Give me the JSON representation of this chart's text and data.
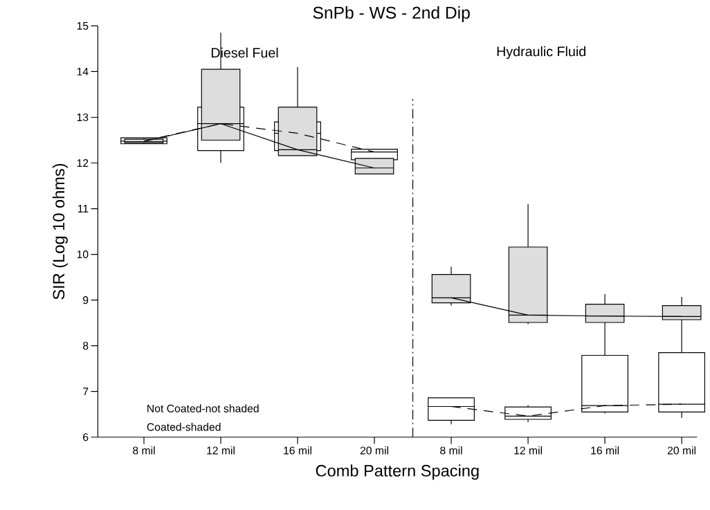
{
  "chart_data": {
    "type": "box",
    "title": "SnPb - WS - 2nd Dip",
    "xlabel": "Comb Pattern Spacing",
    "ylabel": "SIR (Log 10 ohms)",
    "categories": [
      "8 mil",
      "12 mil",
      "16 mil",
      "20 mil",
      "8 mil",
      "12 mil",
      "16 mil",
      "20 mil"
    ],
    "ylim": [
      6,
      15
    ],
    "yticks": [
      6,
      7,
      8,
      9,
      10,
      11,
      12,
      13,
      14,
      15
    ],
    "series": [
      {
        "color": "#ffffff",
        "boxes": [
          {
            "low": 12.42,
            "q1": 12.42,
            "median": 12.48,
            "q3": 12.55,
            "high": 12.55
          },
          {
            "low": 12.0,
            "q1": 12.27,
            "median": 12.86,
            "q3": 13.22,
            "high": 13.22
          },
          {
            "low": 12.27,
            "q1": 12.27,
            "median": 12.65,
            "q3": 12.9,
            "high": 12.9
          },
          {
            "low": 12.07,
            "q1": 12.07,
            "median": 12.24,
            "q3": 12.3,
            "high": 12.3
          },
          {
            "low": 6.28,
            "q1": 6.37,
            "median": 6.67,
            "q3": 6.86,
            "high": 6.86
          },
          {
            "low": 6.33,
            "q1": 6.39,
            "median": 6.46,
            "q3": 6.66,
            "high": 6.7
          },
          {
            "low": 6.52,
            "q1": 6.55,
            "median": 6.69,
            "q3": 7.79,
            "high": 7.79
          },
          {
            "low": 6.42,
            "q1": 6.55,
            "median": 6.72,
            "q3": 7.85,
            "high": 7.85
          }
        ]
      },
      {
        "color": "#dddddd",
        "boxes": [
          {
            "low": 12.42,
            "q1": 12.44,
            "median": 12.47,
            "q3": 12.52,
            "high": 12.55
          },
          {
            "low": 12.5,
            "q1": 12.5,
            "median": 12.86,
            "q3": 14.05,
            "high": 14.85
          },
          {
            "low": 12.16,
            "q1": 12.16,
            "median": 12.29,
            "q3": 13.22,
            "high": 14.1
          },
          {
            "low": 11.76,
            "q1": 11.76,
            "median": 11.89,
            "q3": 12.1,
            "high": 12.1
          },
          {
            "low": 8.88,
            "q1": 8.94,
            "median": 9.05,
            "q3": 9.56,
            "high": 9.73
          },
          {
            "low": 8.47,
            "q1": 8.51,
            "median": 8.67,
            "q3": 10.16,
            "high": 11.1
          },
          {
            "low": 7.79,
            "q1": 8.51,
            "median": 8.65,
            "q3": 8.91,
            "high": 9.13
          },
          {
            "low": 7.85,
            "q1": 8.57,
            "median": 8.64,
            "q3": 8.88,
            "high": 9.07
          }
        ]
      },
      {
        "type": "line",
        "color": "#000000",
        "line_style": "dashed",
        "values": [
          12.48,
          12.86,
          12.65,
          12.24,
          null,
          null,
          null,
          null
        ]
      },
      {
        "type": "line",
        "color": "#000000",
        "line_style": "solid",
        "values": [
          12.47,
          12.86,
          12.29,
          11.89,
          null,
          null,
          null,
          null
        ]
      },
      {
        "type": "line",
        "color": "#000000",
        "line_style": "dashed",
        "values": [
          null,
          null,
          null,
          null,
          6.67,
          6.46,
          6.69,
          6.72
        ]
      },
      {
        "type": "line",
        "color": "#000000",
        "line_style": "solid",
        "values": [
          null,
          null,
          null,
          null,
          9.05,
          8.67,
          8.65,
          8.64
        ]
      }
    ],
    "annotations": [
      "Diesel Fuel",
      "Hydraulic Fluid",
      "Not Coated-not shaded",
      "Coated-shaded"
    ]
  }
}
